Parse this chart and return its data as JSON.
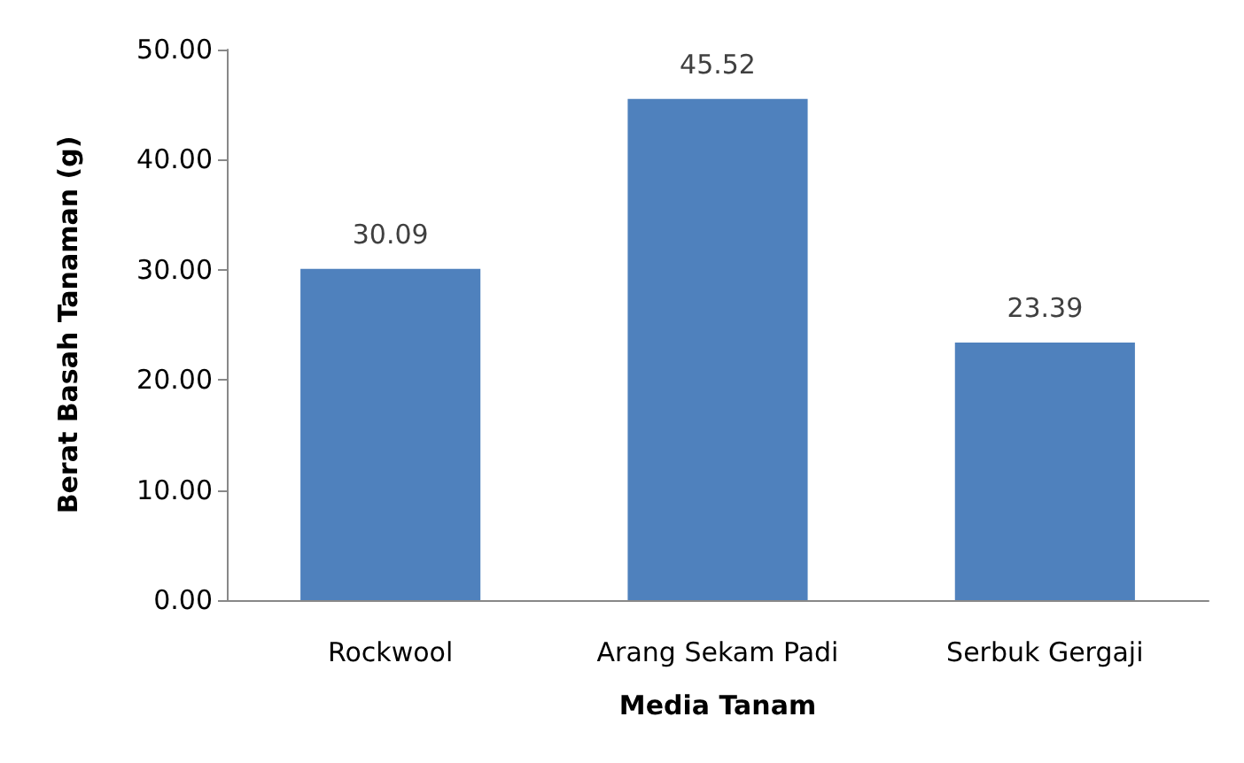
{
  "chart_data": {
    "type": "bar",
    "xlabel": "Media Tanam",
    "ylabel": "Berat Basah Tanaman (g)",
    "categories": [
      "Rockwool",
      "Arang Sekam Padi",
      "Serbuk Gergaji"
    ],
    "values": [
      30.09,
      45.52,
      23.39
    ],
    "color": "#4f81bd",
    "ylim": [
      0,
      50
    ],
    "yticks": [
      {
        "value": 0,
        "label": "0.00"
      },
      {
        "value": 10,
        "label": "10.00"
      },
      {
        "value": 20,
        "label": "20.00"
      },
      {
        "value": 30,
        "label": "30.00"
      },
      {
        "value": 40,
        "label": "40.00"
      },
      {
        "value": 50,
        "label": "50.00"
      }
    ],
    "data_labels": true,
    "grid": false
  }
}
